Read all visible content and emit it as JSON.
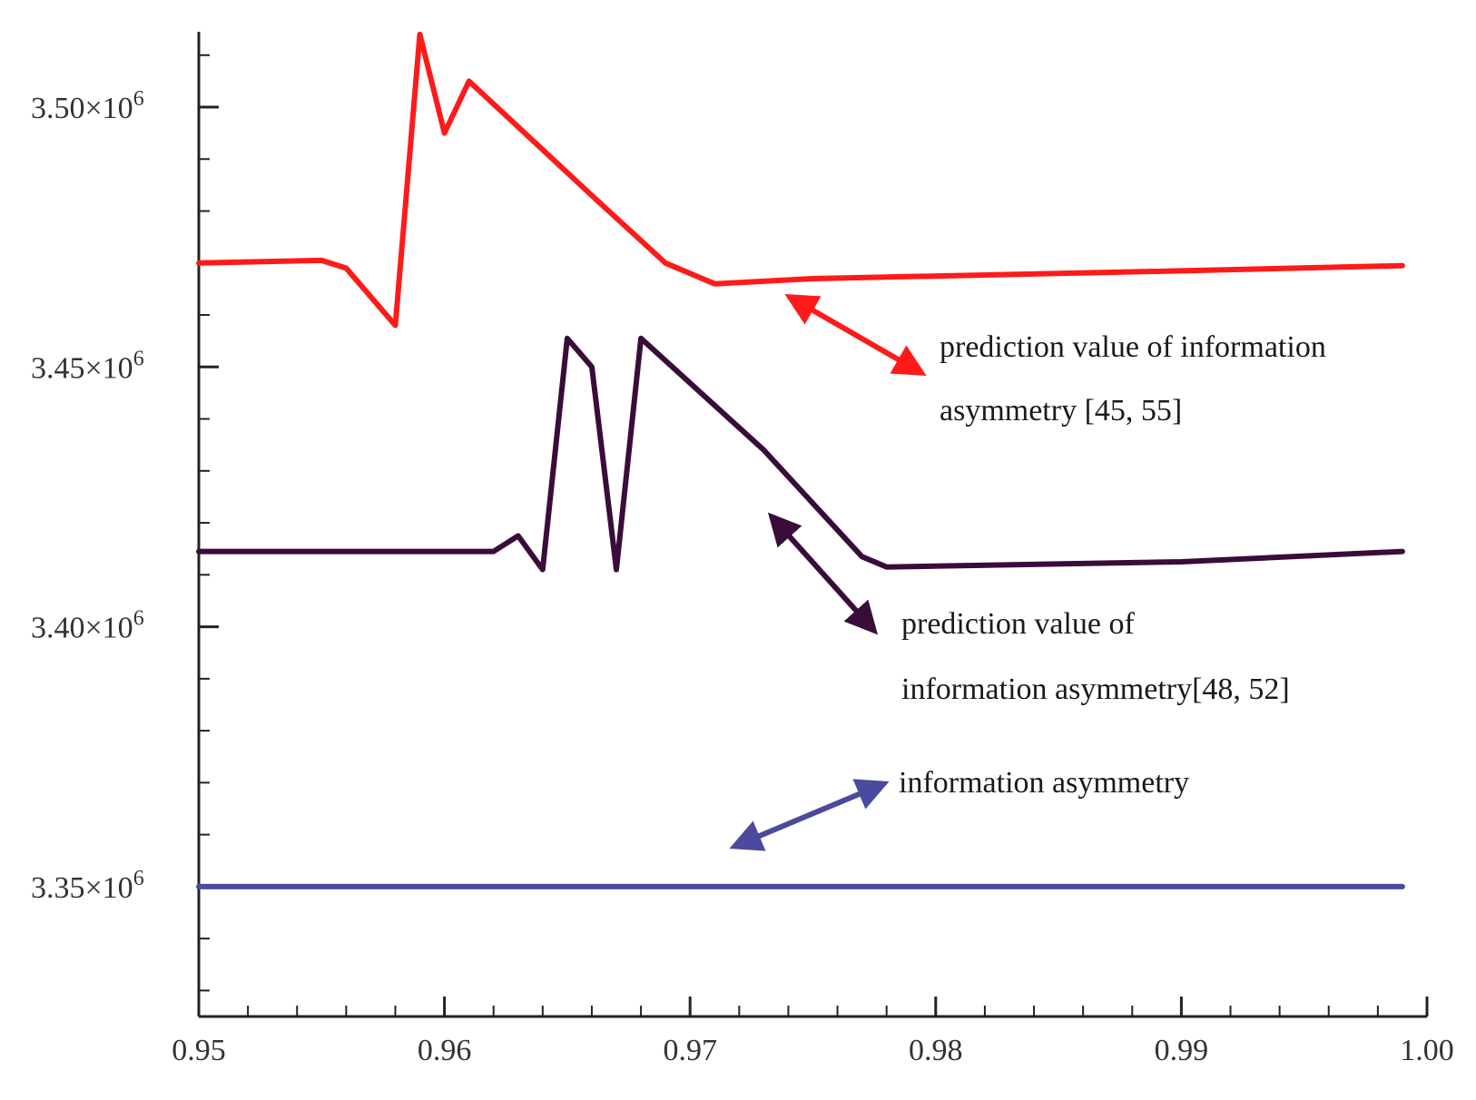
{
  "chart_data": {
    "type": "line",
    "title": "",
    "xlabel": "",
    "ylabel": "",
    "xlim": [
      0.95,
      1.0
    ],
    "ylim": [
      3.325,
      3.5145
    ],
    "x_ticks": [
      {
        "value": 0.95,
        "label": "0.95"
      },
      {
        "value": 0.96,
        "label": "0.96"
      },
      {
        "value": 0.97,
        "label": "0.97"
      },
      {
        "value": 0.98,
        "label": "0.98"
      },
      {
        "value": 0.99,
        "label": "0.99"
      },
      {
        "value": 1.0,
        "label": "1.00"
      }
    ],
    "y_ticks": [
      {
        "value": 3.35,
        "mantissa": "3.35",
        "times": "×10",
        "exponent": "6"
      },
      {
        "value": 3.4,
        "mantissa": "3.40",
        "times": "×10",
        "exponent": "6"
      },
      {
        "value": 3.45,
        "mantissa": "3.45",
        "times": "×10",
        "exponent": "6"
      },
      {
        "value": 3.5,
        "mantissa": "3.50",
        "times": "×10",
        "exponent": "6"
      }
    ],
    "y_units_note": "values in millions (×10^6)",
    "grid": false,
    "series": [
      {
        "name": "prediction value of information asymmetry [45, 55]",
        "color": "#ff1a1a",
        "x": [
          0.95,
          0.955,
          0.956,
          0.958,
          0.959,
          0.96,
          0.961,
          0.966,
          0.969,
          0.971,
          0.975,
          0.99,
          0.999
        ],
        "y": [
          3.47,
          3.4705,
          3.469,
          3.458,
          3.514,
          3.495,
          3.505,
          3.483,
          3.47,
          3.466,
          3.467,
          3.4685,
          3.4695
        ]
      },
      {
        "name": "prediction value of information asymmetry[48, 52]",
        "color": "#3a0c3a",
        "x": [
          0.95,
          0.962,
          0.963,
          0.964,
          0.965,
          0.966,
          0.967,
          0.968,
          0.973,
          0.977,
          0.978,
          0.99,
          0.999
        ],
        "y": [
          3.4145,
          3.4145,
          3.4175,
          3.411,
          3.4555,
          3.45,
          3.411,
          3.4555,
          3.434,
          3.4135,
          3.4115,
          3.4125,
          3.4145
        ]
      },
      {
        "name": "information asymmetry",
        "color": "#4a4a9e",
        "x": [
          0.95,
          0.999
        ],
        "y": [
          3.35,
          3.35
        ]
      }
    ],
    "annotations": [
      {
        "series_index": 0,
        "lines": [
          "prediction value of information",
          "asymmetry  [45, 55]"
        ],
        "color": "#ff1a1a"
      },
      {
        "series_index": 1,
        "lines": [
          "prediction value of",
          "information asymmetry[48, 52]"
        ],
        "color": "#3a0c3a"
      },
      {
        "series_index": 2,
        "lines": [
          "information asymmetry"
        ],
        "color": "#4a4a9e"
      }
    ]
  }
}
